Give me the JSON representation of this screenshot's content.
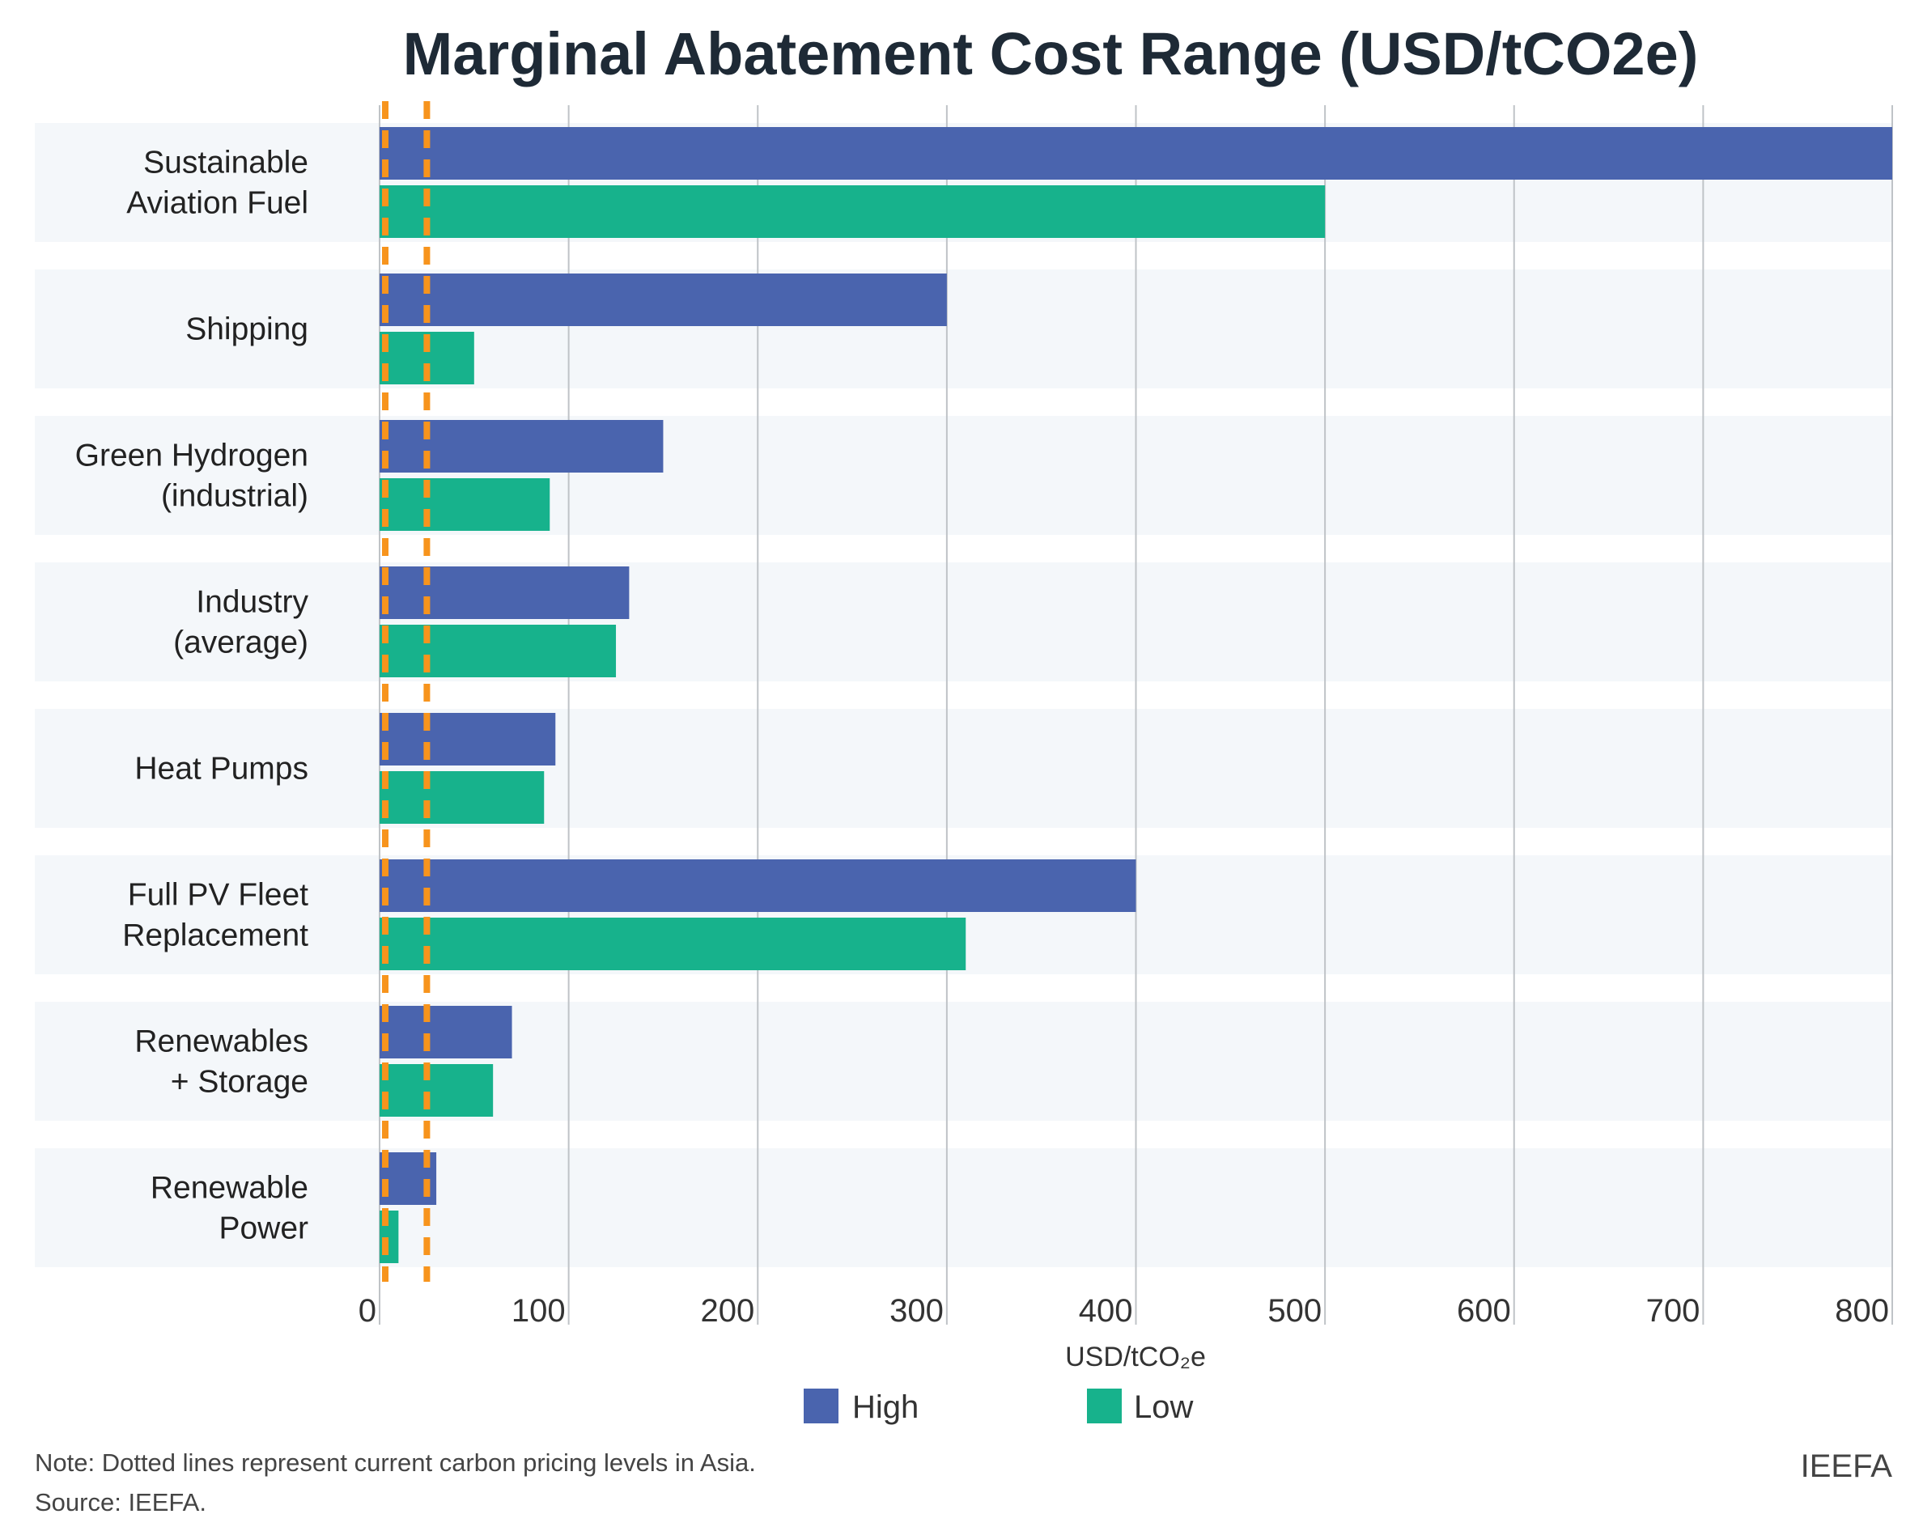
{
  "chart_data": {
    "type": "bar",
    "orientation": "horizontal",
    "title": "Marginal Abatement Cost Range (USD/tCO2e)",
    "xlabel": "USD/tCO₂e",
    "ylabel": "",
    "xlim": [
      0,
      800
    ],
    "xticks": [
      0,
      100,
      200,
      300,
      400,
      500,
      600,
      700,
      800
    ],
    "grid": "vertical",
    "legend_position": "bottom",
    "categories": [
      [
        "Sustainable",
        "Aviation Fuel"
      ],
      [
        "Shipping"
      ],
      [
        "Green Hydrogen",
        "(industrial)"
      ],
      [
        "Industry",
        "(average)"
      ],
      [
        "Heat Pumps"
      ],
      [
        "Full PV Fleet",
        "Replacement"
      ],
      [
        "Renewables",
        "+ Storage"
      ],
      [
        "Renewable",
        "Power"
      ]
    ],
    "series": [
      {
        "name": "High",
        "color": "#4a64ae",
        "values": [
          800,
          300,
          150,
          132,
          93,
          400,
          70,
          30
        ]
      },
      {
        "name": "Low",
        "color": "#17b28c",
        "values": [
          500,
          50,
          90,
          125,
          87,
          310,
          60,
          10
        ]
      }
    ],
    "reference_lines": {
      "color": "#f7941d",
      "style": "dashed",
      "values": [
        3,
        25
      ]
    },
    "note": "Note: Dotted lines represent current carbon pricing levels in Asia.",
    "source": "Source: IEEFA.",
    "brand": "IEEFA"
  }
}
